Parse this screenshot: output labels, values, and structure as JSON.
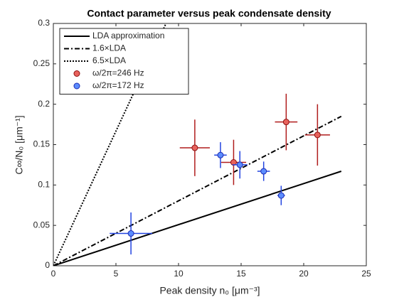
{
  "chart_data": {
    "type": "line",
    "title": "Contact parameter versus peak condensate density",
    "xlabel": "Peak density n₀ [μm⁻³]",
    "ylabel": "C∞/N₀ [μm⁻¹]",
    "xlim": [
      0,
      25
    ],
    "xticks": [
      0,
      5,
      10,
      15,
      20,
      25
    ],
    "ylim": [
      0,
      0.3
    ],
    "yticks": [
      0,
      0.05,
      0.1,
      0.15,
      0.2,
      0.25,
      0.3
    ],
    "legend": "upper left",
    "series": [
      {
        "name": "LDA approximation",
        "type": "line",
        "style": "solid",
        "color": "#000000",
        "x": [
          0,
          23
        ],
        "values": [
          0,
          0.117
        ]
      },
      {
        "name": "1.6×LDA",
        "type": "line",
        "style": "dashdot",
        "color": "#000000",
        "x": [
          0,
          23
        ],
        "values": [
          0,
          0.185
        ]
      },
      {
        "name": "6.5×LDA",
        "type": "line",
        "style": "dotted",
        "color": "#000000",
        "x": [
          0,
          9
        ],
        "values": [
          0,
          0.3
        ]
      },
      {
        "name": "ω/2π=246 Hz",
        "type": "errorbar",
        "color": "#e8625c",
        "edge": "#8c1010",
        "bar_color": "#b01c1c",
        "x": [
          11.3,
          14.4,
          18.6,
          21.1
        ],
        "values": [
          0.146,
          0.128,
          0.178,
          0.162
        ],
        "xerr": [
          1.2,
          1.0,
          0.9,
          1.0
        ],
        "yerr": [
          0.035,
          0.028,
          0.035,
          0.038
        ]
      },
      {
        "name": "ω/2π=172 Hz",
        "type": "errorbar",
        "color": "#5b8cff",
        "edge": "#1c2ab0",
        "bar_color": "#2244e0",
        "x": [
          6.2,
          13.35,
          14.9,
          16.8,
          18.2
        ],
        "values": [
          0.04,
          0.137,
          0.125,
          0.117,
          0.087
        ],
        "xerr": [
          1.7,
          0.5,
          0.6,
          0.5,
          0.3
        ],
        "yerr": [
          0.026,
          0.016,
          0.017,
          0.012,
          0.012
        ]
      }
    ]
  }
}
